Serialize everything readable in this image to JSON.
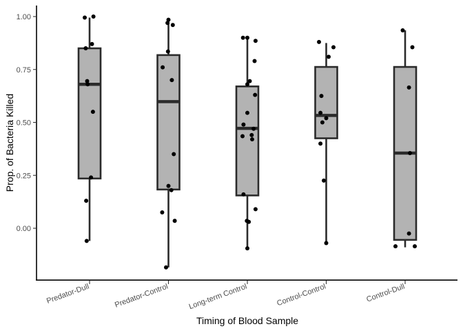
{
  "chart_data": {
    "type": "boxplot",
    "xlabel": "Timing of Blood Sample",
    "ylabel": "Prop. of Bacteria Killed",
    "ylim": [
      -0.24,
      1.06
    ],
    "yticks": [
      "0.00",
      "0.25",
      "0.50",
      "0.75",
      "1.00"
    ],
    "ytick_values": [
      0,
      0.25,
      0.5,
      0.75,
      1.0
    ],
    "categories": [
      "Predator-Dull",
      "Predator-Control",
      "Long-term Control",
      "Control-Control",
      "Control-Dull"
    ],
    "grid": false,
    "legend": "none",
    "box_fill": "#b3b3b3",
    "box_stroke": "#2b2b2b",
    "point_color": "#000000",
    "boxes": [
      {
        "category": "Predator-Dull",
        "whisker_low": -0.06,
        "q1": 0.235,
        "median": 0.68,
        "q3": 0.85,
        "whisker_high": 0.995,
        "points": [
          [
            -0.1,
            0.995
          ],
          [
            0.08,
            1.0
          ],
          [
            0.05,
            0.87
          ],
          [
            -0.08,
            0.85
          ],
          [
            -0.05,
            0.695
          ],
          [
            -0.04,
            0.68
          ],
          [
            0.07,
            0.55
          ],
          [
            0.03,
            0.24
          ],
          [
            -0.07,
            0.13
          ],
          [
            -0.06,
            -0.06
          ]
        ]
      },
      {
        "category": "Predator-Control",
        "whisker_low": -0.185,
        "q1": 0.183,
        "median": 0.598,
        "q3": 0.818,
        "whisker_high": 0.985,
        "points": [
          [
            0.0,
            0.985
          ],
          [
            -0.02,
            0.97
          ],
          [
            0.09,
            0.96
          ],
          [
            -0.01,
            0.835
          ],
          [
            -0.12,
            0.76
          ],
          [
            0.07,
            0.7
          ],
          [
            0.11,
            0.35
          ],
          [
            0.0,
            0.2
          ],
          [
            0.06,
            0.18
          ],
          [
            -0.13,
            0.075
          ],
          [
            0.13,
            0.035
          ],
          [
            -0.05,
            -0.185
          ]
        ]
      },
      {
        "category": "Long-term Control",
        "whisker_low": -0.095,
        "q1": 0.155,
        "median": 0.472,
        "q3": 0.67,
        "whisker_high": 0.9,
        "points": [
          [
            -0.09,
            0.9
          ],
          [
            0.0,
            0.9
          ],
          [
            0.17,
            0.885
          ],
          [
            0.15,
            0.79
          ],
          [
            0.05,
            0.695
          ],
          [
            0.0,
            0.68
          ],
          [
            0.16,
            0.63
          ],
          [
            0.0,
            0.545
          ],
          [
            -0.08,
            0.49
          ],
          [
            0.13,
            0.47
          ],
          [
            0.09,
            0.44
          ],
          [
            -0.1,
            0.435
          ],
          [
            0.1,
            0.42
          ],
          [
            -0.08,
            0.16
          ],
          [
            0.17,
            0.09
          ],
          [
            -0.01,
            0.035
          ],
          [
            0.03,
            0.03
          ],
          [
            0.0,
            -0.095
          ]
        ]
      },
      {
        "category": "Control-Control",
        "whisker_low": -0.07,
        "q1": 0.425,
        "median": 0.533,
        "q3": 0.762,
        "whisker_high": 0.875,
        "points": [
          [
            -0.15,
            0.88
          ],
          [
            0.15,
            0.855
          ],
          [
            0.05,
            0.81
          ],
          [
            -0.1,
            0.625
          ],
          [
            -0.12,
            0.545
          ],
          [
            0.0,
            0.52
          ],
          [
            -0.08,
            0.5
          ],
          [
            -0.12,
            0.4
          ],
          [
            -0.05,
            0.225
          ],
          [
            0.0,
            -0.07
          ]
        ]
      },
      {
        "category": "Control-Dull",
        "whisker_low": -0.09,
        "q1": -0.055,
        "median": 0.355,
        "q3": 0.762,
        "whisker_high": 0.935,
        "points": [
          [
            -0.05,
            0.935
          ],
          [
            0.15,
            0.855
          ],
          [
            0.08,
            0.665
          ],
          [
            0.1,
            0.355
          ],
          [
            0.08,
            -0.025
          ],
          [
            -0.2,
            -0.085
          ],
          [
            0.2,
            -0.085
          ]
        ]
      }
    ]
  }
}
